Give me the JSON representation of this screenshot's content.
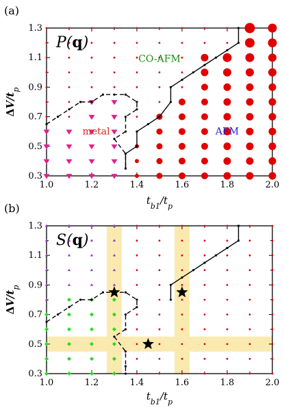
{
  "chart_data": [
    {
      "type": "scatter",
      "panel_label": "(a)",
      "inset_title": "P(q)",
      "xlabel": "t_b1/t_p",
      "ylabel": "ΔV/t_p",
      "xlim": [
        1.0,
        2.0
      ],
      "ylim": [
        0.3,
        1.3
      ],
      "xticks": [
        "1.0",
        "1.2",
        "1.4",
        "1.6",
        "1.8",
        "2.0"
      ],
      "yticks": [
        "0.3",
        "0.5",
        "0.7",
        "0.9",
        "1.1",
        "1.3"
      ],
      "region_labels": [
        {
          "text": "CO-AFM",
          "color": "#1a8a1a"
        },
        {
          "text": "metal",
          "color": "#e52020"
        },
        {
          "text": "AFM",
          "color": "#2020d0"
        }
      ],
      "colors": {
        "afm_marker": "#e00000",
        "metal_marker": "#e0208c"
      },
      "boundary_solid": [
        [
          1.35,
          0.35
        ],
        [
          1.35,
          0.45
        ],
        [
          1.4,
          0.5
        ],
        [
          1.4,
          0.6
        ],
        [
          1.45,
          0.65
        ],
        [
          1.5,
          0.7
        ],
        [
          1.55,
          0.8
        ],
        [
          1.55,
          0.9
        ],
        [
          1.6,
          0.95
        ],
        [
          1.65,
          1.0
        ],
        [
          1.7,
          1.05
        ],
        [
          1.75,
          1.1
        ],
        [
          1.8,
          1.15
        ],
        [
          1.85,
          1.2
        ],
        [
          1.85,
          1.3
        ]
      ],
      "boundary_dashed": [
        [
          1.0,
          0.65
        ],
        [
          1.05,
          0.7
        ],
        [
          1.1,
          0.75
        ],
        [
          1.15,
          0.8
        ],
        [
          1.2,
          0.8
        ],
        [
          1.25,
          0.85
        ],
        [
          1.3,
          0.85
        ],
        [
          1.35,
          0.85
        ],
        [
          1.4,
          0.8
        ],
        [
          1.4,
          0.75
        ],
        [
          1.35,
          0.7
        ],
        [
          1.35,
          0.6
        ],
        [
          1.3,
          0.55
        ],
        [
          1.35,
          0.45
        ],
        [
          1.35,
          0.35
        ]
      ],
      "metal_points": [
        [
          1.0,
          0.3
        ],
        [
          1.0,
          0.4
        ],
        [
          1.0,
          0.5
        ],
        [
          1.0,
          0.6
        ],
        [
          1.1,
          0.3
        ],
        [
          1.1,
          0.4
        ],
        [
          1.1,
          0.5
        ],
        [
          1.1,
          0.6
        ],
        [
          1.2,
          0.3
        ],
        [
          1.2,
          0.4
        ],
        [
          1.2,
          0.5
        ],
        [
          1.2,
          0.6
        ],
        [
          1.3,
          0.3
        ],
        [
          1.3,
          0.4
        ],
        [
          1.3,
          0.5
        ],
        [
          1.3,
          0.6
        ],
        [
          1.3,
          0.7
        ],
        [
          1.3,
          0.8
        ],
        [
          1.2,
          0.7
        ],
        [
          1.2,
          0.8
        ]
      ],
      "afm_points": [
        [
          1.4,
          0.3,
          3
        ],
        [
          1.4,
          0.4,
          3
        ],
        [
          1.4,
          0.5,
          3
        ],
        [
          1.5,
          0.3,
          4.5
        ],
        [
          1.5,
          0.4,
          4.5
        ],
        [
          1.5,
          0.5,
          4.5
        ],
        [
          1.5,
          0.6,
          4.5
        ],
        [
          1.5,
          0.7,
          4.5
        ],
        [
          1.6,
          0.3,
          5
        ],
        [
          1.6,
          0.4,
          5
        ],
        [
          1.6,
          0.5,
          5
        ],
        [
          1.6,
          0.6,
          5
        ],
        [
          1.6,
          0.7,
          5
        ],
        [
          1.6,
          0.8,
          5
        ],
        [
          1.7,
          0.3,
          5
        ],
        [
          1.7,
          0.4,
          5
        ],
        [
          1.7,
          0.5,
          5
        ],
        [
          1.7,
          0.6,
          5
        ],
        [
          1.7,
          0.7,
          5
        ],
        [
          1.7,
          0.8,
          5
        ],
        [
          1.7,
          0.9,
          5
        ],
        [
          1.7,
          1.0,
          5.5
        ],
        [
          1.7,
          1.1,
          5.5
        ],
        [
          1.8,
          0.3,
          5.5
        ],
        [
          1.8,
          0.4,
          5.5
        ],
        [
          1.8,
          0.5,
          5.5
        ],
        [
          1.8,
          0.6,
          5.5
        ],
        [
          1.8,
          0.7,
          5.5
        ],
        [
          1.8,
          0.8,
          5.5
        ],
        [
          1.8,
          0.9,
          5.5
        ],
        [
          1.8,
          1.0,
          6
        ],
        [
          1.8,
          1.1,
          6.5
        ],
        [
          1.9,
          0.3,
          5.5
        ],
        [
          1.9,
          0.4,
          5.5
        ],
        [
          1.9,
          0.5,
          5.5
        ],
        [
          1.9,
          0.6,
          5.5
        ],
        [
          1.9,
          0.7,
          5.5
        ],
        [
          1.9,
          0.8,
          5.5
        ],
        [
          1.9,
          0.9,
          5.5
        ],
        [
          1.9,
          1.0,
          6
        ],
        [
          1.9,
          1.1,
          6.5
        ],
        [
          1.9,
          1.2,
          7
        ],
        [
          1.9,
          1.3,
          7.5
        ],
        [
          2.0,
          0.3,
          5.5
        ],
        [
          2.0,
          0.4,
          5.5
        ],
        [
          2.0,
          0.5,
          5.5
        ],
        [
          2.0,
          0.6,
          5.5
        ],
        [
          2.0,
          0.7,
          5.5
        ],
        [
          2.0,
          0.8,
          5.5
        ],
        [
          2.0,
          0.9,
          5.5
        ],
        [
          2.0,
          1.0,
          6
        ],
        [
          2.0,
          1.1,
          6
        ],
        [
          2.0,
          1.2,
          6.5
        ],
        [
          2.0,
          1.3,
          6.5
        ]
      ]
    },
    {
      "type": "scatter",
      "panel_label": "(b)",
      "inset_title": "S(q)",
      "xlabel": "t_b1/t_p",
      "ylabel": "ΔV/t_p",
      "xlim": [
        1.0,
        2.0
      ],
      "ylim": [
        0.3,
        1.3
      ],
      "xticks": [
        "1.0",
        "1.2",
        "1.4",
        "1.6",
        "1.8",
        "2.0"
      ],
      "yticks": [
        "0.3",
        "0.5",
        "0.7",
        "0.9",
        "1.1",
        "1.3"
      ],
      "colors": {
        "green_marker": "#22dd22",
        "purple_marker": "#9a30c8",
        "red_marker": "#e00000",
        "highlight_band": "#fbeab0"
      },
      "highlight_bands": {
        "vertical_x": [
          1.3,
          1.6
        ],
        "horizontal_y": [
          0.5
        ]
      },
      "stars": [
        [
          1.3,
          0.85
        ],
        [
          1.6,
          0.85
        ],
        [
          1.45,
          0.5
        ]
      ],
      "boundary_solid": [
        [
          1.55,
          0.8
        ],
        [
          1.55,
          0.9
        ],
        [
          1.6,
          0.95
        ],
        [
          1.65,
          1.0
        ],
        [
          1.7,
          1.05
        ],
        [
          1.75,
          1.1
        ],
        [
          1.8,
          1.15
        ],
        [
          1.85,
          1.2
        ],
        [
          1.85,
          1.3
        ]
      ],
      "boundary_dashed": [
        [
          1.0,
          0.65
        ],
        [
          1.05,
          0.7
        ],
        [
          1.1,
          0.75
        ],
        [
          1.15,
          0.8
        ],
        [
          1.2,
          0.8
        ],
        [
          1.25,
          0.85
        ],
        [
          1.3,
          0.85
        ],
        [
          1.35,
          0.85
        ],
        [
          1.4,
          0.8
        ],
        [
          1.4,
          0.75
        ],
        [
          1.35,
          0.7
        ],
        [
          1.35,
          0.6
        ],
        [
          1.3,
          0.55
        ],
        [
          1.35,
          0.45
        ],
        [
          1.35,
          0.35
        ],
        [
          1.35,
          0.3
        ]
      ]
    }
  ]
}
